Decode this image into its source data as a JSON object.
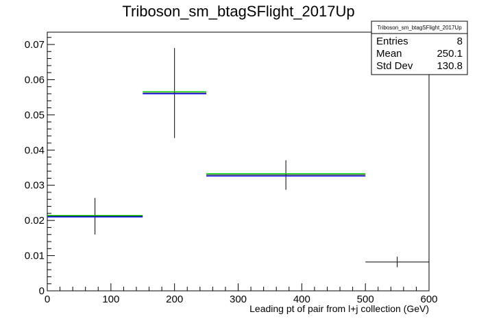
{
  "chart_data": {
    "type": "histogram",
    "title": "Triboson_sm_btagSFlight_2017Up",
    "xlabel": "Leading pt of pair from l+j collection (GeV)",
    "ylabel": "",
    "xlim": [
      0,
      600
    ],
    "ylim": [
      0,
      0.0735
    ],
    "x_ticks": [
      "0",
      "100",
      "200",
      "300",
      "400",
      "500",
      "600"
    ],
    "y_ticks": [
      "0",
      "0.01",
      "0.02",
      "0.03",
      "0.04",
      "0.05",
      "0.06",
      "0.07"
    ],
    "grid": false,
    "series": [
      {
        "color": "#000000",
        "style": "points-with-errors",
        "points": [
          {
            "x": 75,
            "xerr": 75,
            "y": 0.0212,
            "yerr": 0.0052
          },
          {
            "x": 200,
            "xerr": 50,
            "y": 0.0562,
            "yerr": 0.0128
          },
          {
            "x": 375,
            "xerr": 125,
            "y": 0.0329,
            "yerr": 0.0042
          },
          {
            "x": 550,
            "xerr": 50,
            "y": 0.0082,
            "yerr": 0.0015
          }
        ]
      },
      {
        "color": "#1a1aff",
        "style": "bin-lines",
        "bins": [
          {
            "x0": 0,
            "x1": 150,
            "y": 0.021
          },
          {
            "x0": 150,
            "x1": 250,
            "y": 0.056
          },
          {
            "x0": 250,
            "x1": 500,
            "y": 0.0326
          }
        ]
      },
      {
        "color": "#00cc00",
        "style": "bin-lines",
        "bins": [
          {
            "x0": 0,
            "x1": 150,
            "y": 0.0214
          },
          {
            "x0": 150,
            "x1": 250,
            "y": 0.0566
          },
          {
            "x0": 250,
            "x1": 500,
            "y": 0.0333
          }
        ]
      }
    ],
    "stats_box": {
      "title": "Triboson_sm_btagSFlight_2017Up",
      "rows": [
        {
          "label": "Entries",
          "value": "8"
        },
        {
          "label": "Mean",
          "value": "250.1"
        },
        {
          "label": "Std Dev",
          "value": "130.8"
        }
      ]
    }
  }
}
